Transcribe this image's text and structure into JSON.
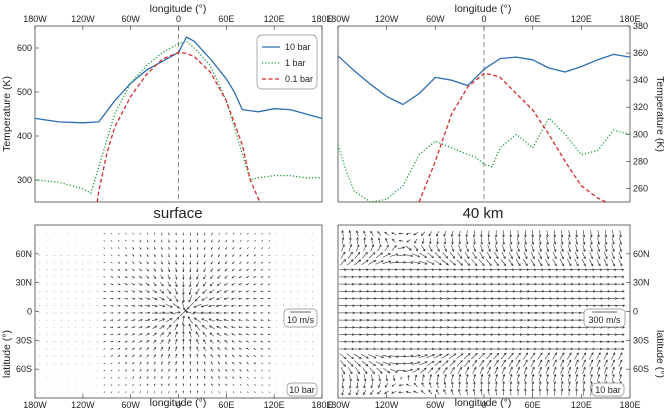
{
  "chart_data": [
    {
      "type": "line",
      "panel": "top-left",
      "xlabel": "longitude (°)",
      "ylabel": "Temperature (K)",
      "xlim": [
        -180,
        180
      ],
      "ylim": [
        250,
        650
      ],
      "xticks": [
        "180W",
        "120W",
        "60W",
        "0",
        "60E",
        "120E",
        "180E"
      ],
      "yticks": [
        "300",
        "400",
        "500",
        "600"
      ],
      "legend": {
        "placement": "top-right",
        "entries": [
          "10 bar",
          "1 bar",
          "0.1 bar"
        ]
      },
      "series": [
        {
          "name": "10 bar",
          "style": "solid",
          "color": "#2c6db2",
          "x": [
            -180,
            -150,
            -120,
            -100,
            -80,
            -60,
            -40,
            -20,
            0,
            10,
            20,
            40,
            60,
            70,
            80,
            100,
            120,
            140,
            160,
            180
          ],
          "y": [
            440,
            432,
            430,
            432,
            480,
            520,
            550,
            570,
            590,
            625,
            615,
            575,
            530,
            500,
            460,
            455,
            462,
            460,
            450,
            440
          ]
        },
        {
          "name": "1 bar",
          "style": "dotted",
          "color": "#1a9a3a",
          "x": [
            -180,
            -150,
            -120,
            -110,
            -100,
            -80,
            -60,
            -40,
            -20,
            0,
            10,
            20,
            40,
            60,
            80,
            90,
            100,
            120,
            140,
            160,
            180
          ],
          "y": [
            300,
            295,
            280,
            270,
            330,
            450,
            520,
            560,
            590,
            610,
            615,
            600,
            560,
            480,
            360,
            300,
            305,
            310,
            310,
            305,
            305
          ]
        },
        {
          "name": "0.1 bar",
          "style": "dashed",
          "color": "#d62a2a",
          "x": [
            -102,
            -100,
            -90,
            -80,
            -60,
            -40,
            -20,
            0,
            10,
            20,
            40,
            60,
            80,
            90,
            102
          ],
          "y": [
            250,
            275,
            360,
            420,
            490,
            540,
            575,
            590,
            588,
            580,
            545,
            480,
            380,
            300,
            250
          ]
        }
      ]
    },
    {
      "type": "line",
      "panel": "top-right",
      "xlabel": "longitude (°)",
      "ylabel": "Temperature (K)",
      "xlim": [
        -180,
        180
      ],
      "ylim": [
        250,
        380
      ],
      "xticks": [
        "180W",
        "120W",
        "60W",
        "0",
        "60E",
        "120E",
        "180E"
      ],
      "yticks": [
        "260",
        "280",
        "300",
        "320",
        "340",
        "360",
        "380"
      ],
      "series": [
        {
          "name": "10 bar",
          "style": "solid",
          "color": "#2c6db2",
          "x": [
            -180,
            -160,
            -140,
            -120,
            -100,
            -80,
            -60,
            -40,
            -20,
            0,
            20,
            40,
            60,
            80,
            100,
            120,
            140,
            160,
            180
          ],
          "y": [
            358,
            347,
            337,
            328,
            322,
            330,
            342,
            340,
            336,
            348,
            356,
            357,
            355,
            349,
            346,
            350,
            355,
            359,
            357
          ]
        },
        {
          "name": "1 bar",
          "style": "dotted",
          "color": "#1a9a3a",
          "x": [
            -180,
            -170,
            -160,
            -140,
            -120,
            -100,
            -80,
            -60,
            -40,
            -20,
            -10,
            0,
            10,
            20,
            40,
            60,
            80,
            100,
            120,
            140,
            160,
            180
          ],
          "y": [
            292,
            273,
            258,
            250,
            252,
            262,
            285,
            295,
            290,
            285,
            283,
            278,
            276,
            290,
            300,
            290,
            312,
            300,
            285,
            288,
            303,
            300
          ]
        },
        {
          "name": "0.1 bar",
          "style": "dashed",
          "color": "#d62a2a",
          "x": [
            -80,
            -60,
            -40,
            -20,
            0,
            10,
            20,
            40,
            60,
            80,
            100,
            120,
            140,
            150
          ],
          "y": [
            250,
            280,
            315,
            335,
            345,
            344,
            342,
            330,
            318,
            300,
            280,
            262,
            253,
            250
          ]
        }
      ]
    },
    {
      "type": "quiver",
      "panel": "bottom-left",
      "title": "surface",
      "xlabel": "longitude (°)",
      "ylabel": "latitude (°)",
      "xlim": [
        -180,
        180
      ],
      "ylim": [
        -90,
        90
      ],
      "xticks": [
        "180W",
        "120W",
        "60W",
        "0",
        "60E",
        "120E",
        "180E"
      ],
      "yticks": [
        "60N",
        "30N",
        "0",
        "30S",
        "60S"
      ],
      "scale_label": "10 m/s",
      "level_label": "10 bar",
      "flow": "convergent"
    },
    {
      "type": "quiver",
      "panel": "bottom-right",
      "title": "40 km",
      "xlabel": "longitude (°)",
      "ylabel": "latitude (°)",
      "xlim": [
        -180,
        180
      ],
      "ylim": [
        -90,
        90
      ],
      "xticks": [
        "180W",
        "120W",
        "60W",
        "0",
        "60E",
        "120E",
        "180E"
      ],
      "yticks": [
        "60N",
        "30N",
        "0",
        "30S",
        "60S"
      ],
      "scale_label": "300 m/s",
      "level_label": "10 bar",
      "flow": "superrotating"
    }
  ]
}
